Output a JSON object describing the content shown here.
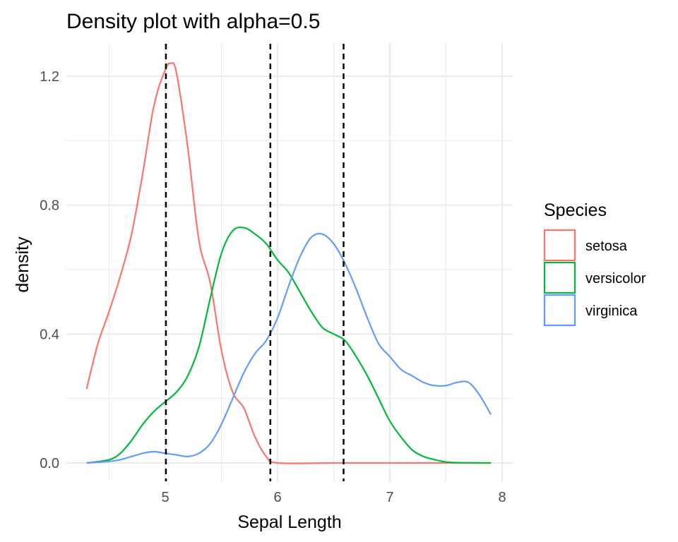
{
  "chart_data": {
    "type": "line",
    "title": "Density plot with alpha=0.5",
    "xlabel": "Sepal Length",
    "ylabel": "density",
    "xlim": [
      4.3,
      7.9
    ],
    "ylim": [
      0,
      1.2
    ],
    "x_ticks": [
      5,
      6,
      7,
      8
    ],
    "y_ticks": [
      0.0,
      0.4,
      0.8,
      1.2
    ],
    "y_tick_labels": [
      "0.0",
      "0.4",
      "0.8",
      "1.2"
    ],
    "grid": true,
    "legend": {
      "title": "Species",
      "placement": "right"
    },
    "reference_lines": [
      5.006,
      5.936,
      6.588
    ],
    "series": [
      {
        "name": "setosa",
        "color": "#F8766D",
        "x": [
          4.3,
          4.4,
          4.5,
          4.6,
          4.7,
          4.8,
          4.9,
          5.0,
          5.05,
          5.1,
          5.2,
          5.3,
          5.4,
          5.5,
          5.6,
          5.7,
          5.8,
          5.9,
          6.0,
          6.5,
          7.0,
          7.5,
          7.9
        ],
        "y": [
          0.23,
          0.37,
          0.47,
          0.58,
          0.71,
          0.9,
          1.11,
          1.22,
          1.24,
          1.21,
          0.98,
          0.69,
          0.56,
          0.35,
          0.22,
          0.17,
          0.08,
          0.02,
          0.0,
          0.0,
          0.0,
          0.0,
          0.0
        ]
      },
      {
        "name": "versicolor",
        "color": "#00BA38",
        "x": [
          4.3,
          4.5,
          4.6,
          4.7,
          4.8,
          4.9,
          5.0,
          5.1,
          5.2,
          5.3,
          5.4,
          5.5,
          5.6,
          5.7,
          5.8,
          5.9,
          6.0,
          6.1,
          6.2,
          6.3,
          6.4,
          6.5,
          6.6,
          6.7,
          6.8,
          6.9,
          7.0,
          7.1,
          7.2,
          7.3,
          7.4,
          7.5,
          7.6,
          7.9
        ],
        "y": [
          0.0,
          0.01,
          0.03,
          0.07,
          0.12,
          0.16,
          0.19,
          0.22,
          0.27,
          0.36,
          0.51,
          0.65,
          0.72,
          0.73,
          0.71,
          0.68,
          0.63,
          0.59,
          0.53,
          0.47,
          0.42,
          0.4,
          0.38,
          0.33,
          0.27,
          0.2,
          0.13,
          0.08,
          0.04,
          0.02,
          0.01,
          0.003,
          0.001,
          0.0
        ]
      },
      {
        "name": "virginica",
        "color": "#619CFF",
        "x": [
          4.3,
          4.5,
          4.6,
          4.8,
          4.9,
          5.0,
          5.1,
          5.2,
          5.3,
          5.4,
          5.5,
          5.6,
          5.7,
          5.8,
          5.9,
          6.0,
          6.1,
          6.2,
          6.3,
          6.4,
          6.5,
          6.6,
          6.7,
          6.8,
          6.9,
          7.0,
          7.1,
          7.2,
          7.3,
          7.4,
          7.5,
          7.6,
          7.7,
          7.8,
          7.9
        ],
        "y": [
          0.0,
          0.005,
          0.01,
          0.03,
          0.035,
          0.03,
          0.025,
          0.02,
          0.03,
          0.06,
          0.12,
          0.2,
          0.28,
          0.34,
          0.38,
          0.45,
          0.55,
          0.64,
          0.7,
          0.71,
          0.68,
          0.62,
          0.54,
          0.45,
          0.37,
          0.33,
          0.29,
          0.27,
          0.25,
          0.24,
          0.24,
          0.25,
          0.25,
          0.21,
          0.15
        ]
      }
    ]
  }
}
